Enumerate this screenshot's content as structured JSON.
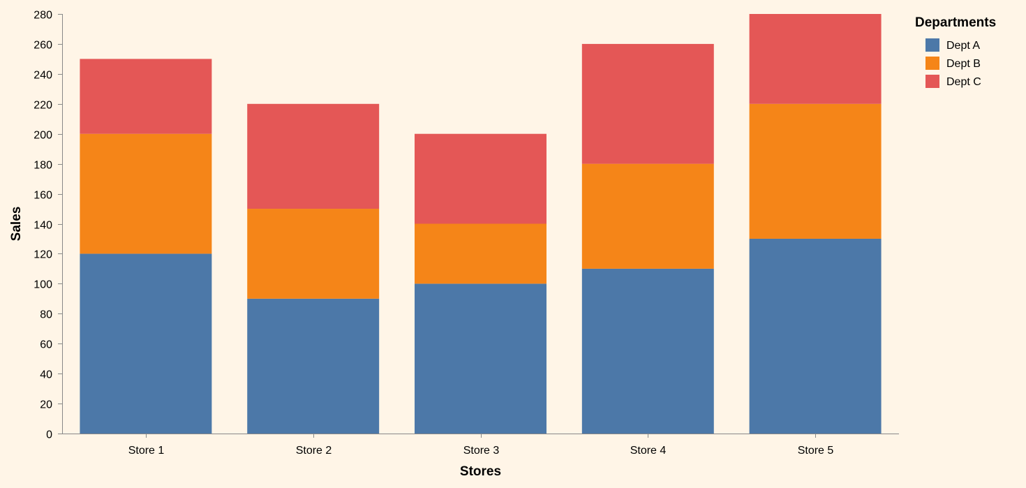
{
  "colors": {
    "background": "#FFF5E7",
    "axis": "#888888",
    "Dept A": "#4C78A8",
    "Dept B": "#F58518",
    "Dept C": "#E45756"
  },
  "chart_data": {
    "type": "bar",
    "stacked": true,
    "categories": [
      "Store 1",
      "Store 2",
      "Store 3",
      "Store 4",
      "Store 5"
    ],
    "series": [
      {
        "name": "Dept A",
        "values": [
          120,
          90,
          100,
          110,
          130
        ]
      },
      {
        "name": "Dept B",
        "values": [
          80,
          60,
          40,
          70,
          90
        ]
      },
      {
        "name": "Dept C",
        "values": [
          50,
          70,
          60,
          80,
          60
        ]
      }
    ],
    "xlabel": "Stores",
    "ylabel": "Sales",
    "ylim": [
      0,
      280
    ],
    "yticks": [
      0,
      20,
      40,
      60,
      80,
      100,
      120,
      140,
      160,
      180,
      200,
      220,
      240,
      260,
      280
    ],
    "grid": false,
    "legend": {
      "title": "Departments",
      "placement": "top-right"
    }
  }
}
